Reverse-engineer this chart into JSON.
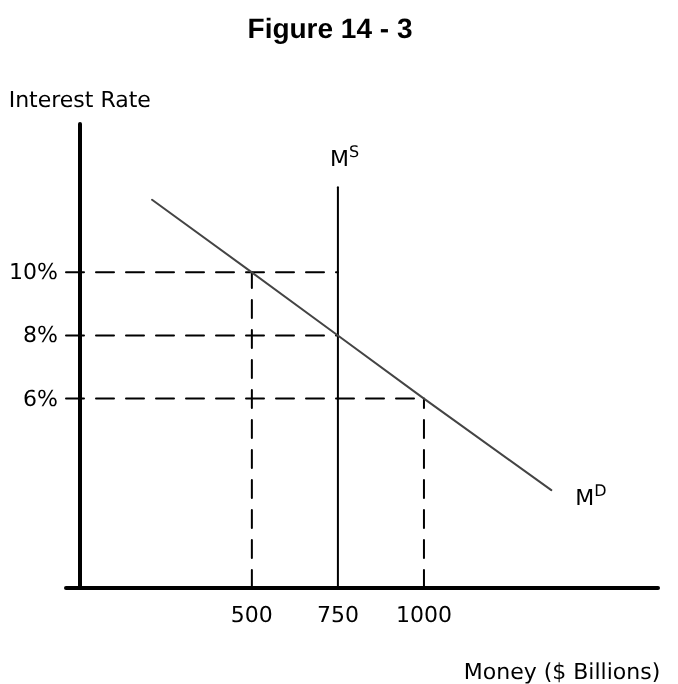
{
  "chart_data": {
    "type": "line",
    "title": "Figure 14 - 3",
    "xlabel": "Money ($ Billions)",
    "ylabel": "Interest Rate",
    "xlim": [
      -40,
      1680
    ],
    "ylim": [
      0,
      14.7
    ],
    "xticks": [
      500,
      750,
      1000
    ],
    "yticks": [
      {
        "value": 6,
        "label": "6%"
      },
      {
        "value": 8,
        "label": "8%"
      },
      {
        "value": 10,
        "label": "10%"
      }
    ],
    "grid": false,
    "marker": "none",
    "series": [
      {
        "name": "M$^{S}$",
        "color": "#000000",
        "x": [
          750,
          750
        ],
        "values": [
          0,
          12.7
        ],
        "line_style": "solid"
      },
      {
        "name": "M$^{D}$",
        "color": "#444444",
        "x": [
          210,
          500,
          750,
          1000,
          1370
        ],
        "values": [
          12.3,
          10,
          8,
          6,
          3.1
        ],
        "line_style": "solid"
      },
      {
        "color": "#000000",
        "x": [
          -40,
          750
        ],
        "values": [
          10,
          10
        ],
        "line_style": "dashed"
      },
      {
        "color": "#000000",
        "x": [
          -40,
          750
        ],
        "values": [
          8,
          8
        ],
        "line_style": "dashed"
      },
      {
        "color": "#000000",
        "x": [
          -40,
          1000
        ],
        "values": [
          6,
          6
        ],
        "line_style": "dashed"
      },
      {
        "color": "#000000",
        "x": [
          500,
          500
        ],
        "values": [
          0,
          10
        ],
        "line_style": "dashed"
      },
      {
        "color": "#000000",
        "x": [
          1000,
          1000
        ],
        "values": [
          0,
          6
        ],
        "line_style": "dashed"
      }
    ]
  }
}
